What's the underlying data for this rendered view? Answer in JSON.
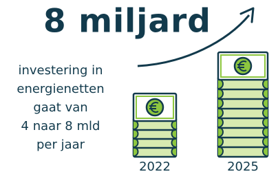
{
  "title": "8 miljard",
  "body": {
    "lines": [
      "investering in",
      "energienetten",
      "gaat van",
      "4 naar 8 mld",
      "per jaar"
    ]
  },
  "stacks": [
    {
      "label": "2022"
    },
    {
      "label": "2025"
    }
  ]
}
